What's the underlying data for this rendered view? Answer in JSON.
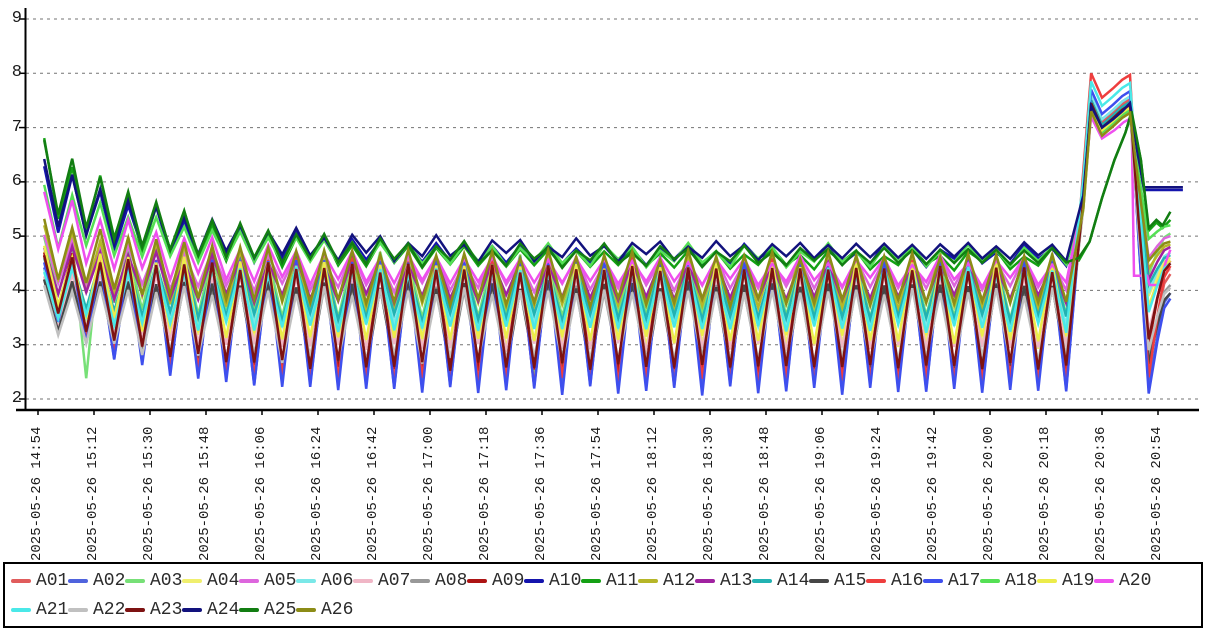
{
  "chart_data": {
    "type": "line",
    "title": "",
    "xlabel": "",
    "ylabel": "",
    "ylim": [
      2,
      9
    ],
    "grid": "horizontal-dashed",
    "legend_position": "bottom",
    "y_ticks": [
      "9",
      "8",
      "7",
      "6",
      "5",
      "4",
      "3",
      "2"
    ],
    "x_tick_labels": [
      "2025-05-26 14:54",
      "2025-05-26 15:12",
      "2025-05-26 15:30",
      "2025-05-26 15:48",
      "2025-05-26 16:06",
      "2025-05-26 16:24",
      "2025-05-26 16:42",
      "2025-05-26 17:00",
      "2025-05-26 17:18",
      "2025-05-26 17:36",
      "2025-05-26 17:54",
      "2025-05-26 18:12",
      "2025-05-26 18:30",
      "2025-05-26 18:48",
      "2025-05-26 19:06",
      "2025-05-26 19:24",
      "2025-05-26 19:42",
      "2025-05-26 20:00",
      "2025-05-26 20:18",
      "2025-05-26 20:36",
      "2025-05-26 20:54"
    ],
    "x_interval_minutes": 18,
    "oscillation_period_minutes": 9,
    "event": {
      "onset_min": 333,
      "first_peak_min": 338.5,
      "second_peak_min": 351,
      "crash_min": 357,
      "recovery_end_min": 364,
      "max_value": 8.0
    },
    "series": [
      {
        "name": "A01",
        "color": "#e05c5c",
        "profile": {
          "start": 4.6,
          "steady_peak": 4.5,
          "steady_trough": 2.4,
          "spike_peak": 7.55,
          "post_crash_low": 2.55,
          "final": 4.3
        }
      },
      {
        "name": "A02",
        "color": "#4f63dd",
        "profile": {
          "start": 4.5,
          "steady_peak": 4.5,
          "steady_trough": 2.25,
          "spike_peak": 7.6,
          "post_crash_low": 2.2,
          "final": 3.95
        }
      },
      {
        "name": "A03",
        "color": "#77e077",
        "profile": {
          "start": 5.0,
          "steady_peak": 4.6,
          "steady_trough": 3.55,
          "spike_peak": 7.3,
          "post_crash_low": 4.3,
          "final": 5.05,
          "periodic_deep_dip": true
        }
      },
      {
        "name": "A04",
        "color": "#f0ef6e",
        "profile": {
          "start": 4.7,
          "steady_peak": 4.4,
          "steady_trough": 3.0,
          "spike_peak": 7.3,
          "post_crash_low": 3.9,
          "final": 4.6
        }
      },
      {
        "name": "A05",
        "color": "#dd66dd",
        "profile": {
          "start": 5.05,
          "steady_peak": 4.55,
          "steady_trough": 4.05,
          "spike_peak": 7.35,
          "post_crash_low": 4.6,
          "final": 5.0
        }
      },
      {
        "name": "A06",
        "color": "#7ae8e8",
        "profile": {
          "start": 4.4,
          "steady_peak": 4.32,
          "steady_trough": 3.38,
          "spike_peak": 7.6,
          "post_crash_low": 3.95,
          "final": 4.7
        }
      },
      {
        "name": "A07",
        "color": "#f0b6c6",
        "profile": {
          "start": 4.3,
          "steady_peak": 4.27,
          "steady_trough": 2.95,
          "spike_peak": 7.45,
          "post_crash_low": 3.25,
          "final": 4.4
        }
      },
      {
        "name": "A08",
        "color": "#989898",
        "profile": {
          "start": 4.15,
          "steady_peak": 4.05,
          "steady_trough": 2.68,
          "spike_peak": 7.35,
          "post_crash_low": 2.8,
          "final": 4.1
        }
      },
      {
        "name": "A09",
        "color": "#ad1414",
        "profile": {
          "start": 4.7,
          "steady_peak": 4.45,
          "steady_trough": 2.55,
          "spike_peak": 7.5,
          "post_crash_low": 3.0,
          "final": 4.55
        }
      },
      {
        "name": "A10",
        "color": "#1414ad",
        "profile": {
          "start": 6.45,
          "steady_peak": 4.78,
          "steady_trough": 4.52,
          "spike_peak": 7.4,
          "post_crash_low": 5.85,
          "final": 5.85,
          "tail": "flat"
        }
      },
      {
        "name": "A11",
        "color": "#14a014",
        "profile": {
          "start": 6.85,
          "steady_peak": 4.7,
          "steady_trough": 4.45,
          "spike_peak": 7.25,
          "post_crash_low": 5.1,
          "final": 5.3,
          "tail": "slow_rise"
        }
      },
      {
        "name": "A12",
        "color": "#b6b628",
        "profile": {
          "start": 5.2,
          "steady_peak": 4.6,
          "steady_trough": 3.72,
          "spike_peak": 7.35,
          "post_crash_low": 4.4,
          "final": 4.85
        }
      },
      {
        "name": "A13",
        "color": "#a022a0",
        "profile": {
          "start": 4.85,
          "steady_peak": 4.5,
          "steady_trough": 3.85,
          "spike_peak": 7.4,
          "post_crash_low": 4.2,
          "final": 4.8
        }
      },
      {
        "name": "A14",
        "color": "#22b2b2",
        "profile": {
          "start": 4.6,
          "steady_peak": 4.42,
          "steady_trough": 3.5,
          "spike_peak": 7.5,
          "post_crash_low": 4.1,
          "final": 4.65
        }
      },
      {
        "name": "A15",
        "color": "#464646",
        "profile": {
          "start": 4.2,
          "steady_peak": 4.1,
          "steady_trough": 2.6,
          "spike_peak": 7.4,
          "post_crash_low": 2.65,
          "final": 3.95
        }
      },
      {
        "name": "A16",
        "color": "#ee3e3e",
        "profile": {
          "start": 4.6,
          "steady_peak": 4.55,
          "steady_trough": 2.32,
          "spike_peak": 8.0,
          "post_crash_low": 2.4,
          "final": 4.45
        }
      },
      {
        "name": "A17",
        "color": "#3e4fee",
        "profile": {
          "start": 4.55,
          "steady_peak": 4.55,
          "steady_trough": 2.15,
          "spike_peak": 7.7,
          "post_crash_low": 2.1,
          "final": 3.85
        }
      },
      {
        "name": "A18",
        "color": "#55e055",
        "profile": {
          "start": 6.05,
          "steady_peak": 4.78,
          "steady_trough": 4.5,
          "spike_peak": 7.35,
          "post_crash_low": 4.95,
          "final": 5.2
        }
      },
      {
        "name": "A19",
        "color": "#ecec4a",
        "profile": {
          "start": 4.75,
          "steady_peak": 4.45,
          "steady_trough": 3.1,
          "spike_peak": 7.4,
          "post_crash_low": 3.7,
          "final": 4.55
        }
      },
      {
        "name": "A20",
        "color": "#ee4fee",
        "profile": {
          "start": 5.9,
          "steady_peak": 4.55,
          "steady_trough": 4.15,
          "spike_peak": 7.2,
          "mid_drop_level": 4.27,
          "post_crash_low": 4.1,
          "final": 4.75
        }
      },
      {
        "name": "A21",
        "color": "#4ae8e8",
        "profile": {
          "start": 4.4,
          "steady_peak": 4.35,
          "steady_trough": 3.3,
          "spike_peak": 7.85,
          "post_crash_low": 3.6,
          "final": 4.5
        }
      },
      {
        "name": "A22",
        "color": "#c0c0c0",
        "profile": {
          "start": 4.05,
          "steady_peak": 3.98,
          "steady_trough": 2.72,
          "spike_peak": 7.3,
          "post_crash_low": 2.9,
          "final": 4.05
        }
      },
      {
        "name": "A23",
        "color": "#7d1212",
        "profile": {
          "start": 4.65,
          "steady_peak": 4.4,
          "steady_trough": 2.6,
          "spike_peak": 7.45,
          "post_crash_low": 3.1,
          "final": 4.5
        }
      },
      {
        "name": "A24",
        "color": "#12127d",
        "profile": {
          "start": 6.5,
          "steady_peak": 4.85,
          "steady_trough": 4.6,
          "spike_peak": 7.45,
          "post_crash_low": 5.9,
          "final": 5.9,
          "tail": "flat"
        }
      },
      {
        "name": "A25",
        "color": "#127d12",
        "profile": {
          "start": 6.9,
          "steady_peak": 4.75,
          "steady_trough": 4.5,
          "spike_peak": 7.3,
          "post_crash_low": 5.15,
          "final": 5.45,
          "tail": "slow_rise"
        }
      },
      {
        "name": "A26",
        "color": "#8c8c16",
        "profile": {
          "start": 5.35,
          "steady_peak": 4.65,
          "steady_trough": 3.78,
          "spike_peak": 7.3,
          "post_crash_low": 4.55,
          "final": 4.9
        }
      }
    ]
  }
}
